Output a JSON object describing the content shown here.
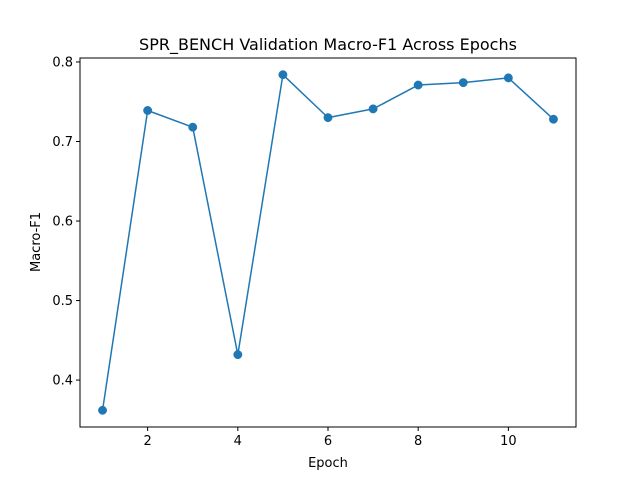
{
  "chart_data": {
    "type": "line",
    "title": "SPR_BENCH Validation Macro-F1 Across Epochs",
    "xlabel": "Epoch",
    "ylabel": "Macro-F1",
    "x": [
      1,
      2,
      3,
      4,
      5,
      6,
      7,
      8,
      9,
      10,
      11
    ],
    "series": [
      {
        "values": [
          0.362,
          0.739,
          0.718,
          0.432,
          0.784,
          0.73,
          0.741,
          0.771,
          0.774,
          0.78,
          0.728
        ],
        "color": "#1f77b4",
        "marker": "circle"
      }
    ],
    "xlim": [
      0.5,
      11.5
    ],
    "ylim": [
      0.341,
      0.805
    ],
    "xticks": [
      2,
      4,
      6,
      8,
      10
    ],
    "yticks": [
      0.4,
      0.5,
      0.6,
      0.7,
      0.8
    ],
    "xtick_labels": [
      "2",
      "4",
      "6",
      "8",
      "10"
    ],
    "ytick_labels": [
      "0.4",
      "0.5",
      "0.6",
      "0.7",
      "0.8"
    ],
    "grid": false,
    "legend": "none"
  }
}
